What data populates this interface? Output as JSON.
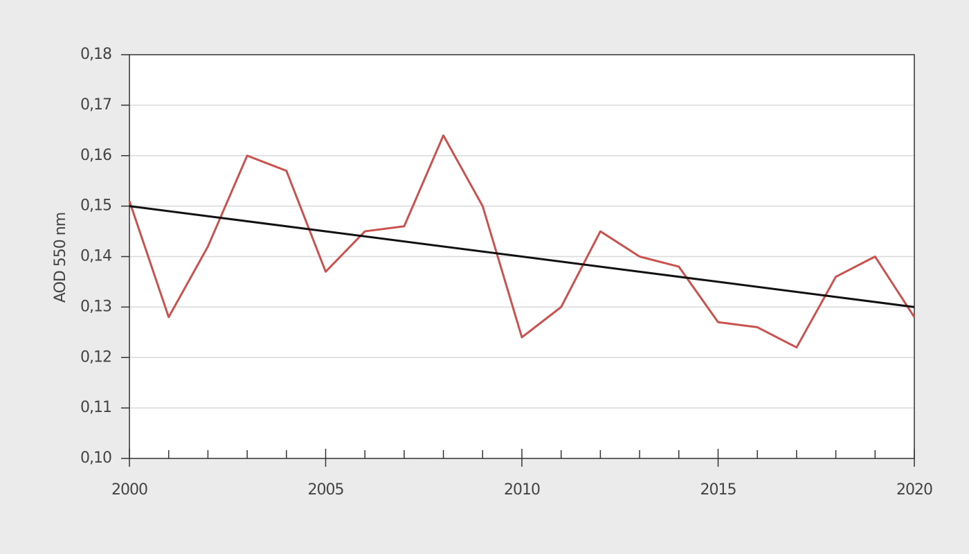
{
  "chart_data": {
    "type": "line",
    "y_label": "AOD 550 nm",
    "x": [
      2000,
      2001,
      2002,
      2003,
      2004,
      2005,
      2006,
      2007,
      2008,
      2009,
      2010,
      2011,
      2012,
      2013,
      2014,
      2015,
      2016,
      2017,
      2018,
      2019,
      2020
    ],
    "series": [
      {
        "color": "#c9524f",
        "values": [
          0.151,
          0.128,
          0.142,
          0.16,
          0.157,
          0.137,
          0.145,
          0.146,
          0.164,
          0.15,
          0.124,
          0.13,
          0.145,
          0.14,
          0.138,
          0.127,
          0.126,
          0.122,
          0.136,
          0.14,
          0.128
        ]
      },
      {
        "color": "#111111",
        "x": [
          2000,
          2020
        ],
        "values": [
          0.15,
          0.13
        ]
      }
    ],
    "xlim": [
      2000,
      2020
    ],
    "xticks": [
      2000,
      2005,
      2010,
      2015,
      2020
    ],
    "xminorticks": [
      2001,
      2002,
      2003,
      2004,
      2006,
      2007,
      2008,
      2009,
      2011,
      2012,
      2013,
      2014,
      2016,
      2017,
      2018,
      2019
    ],
    "ylim": [
      0.1,
      0.18
    ],
    "yticks": [
      {
        "value": 0.1,
        "label": "0,10"
      },
      {
        "value": 0.11,
        "label": "0,11"
      },
      {
        "value": 0.12,
        "label": "0,12"
      },
      {
        "value": 0.13,
        "label": "0,13"
      },
      {
        "value": 0.14,
        "label": "0,14"
      },
      {
        "value": 0.15,
        "label": "0,15"
      },
      {
        "value": 0.16,
        "label": "0,16"
      },
      {
        "value": 0.17,
        "label": "0,17"
      },
      {
        "value": 0.18,
        "label": "0,18"
      }
    ],
    "grid": true
  }
}
